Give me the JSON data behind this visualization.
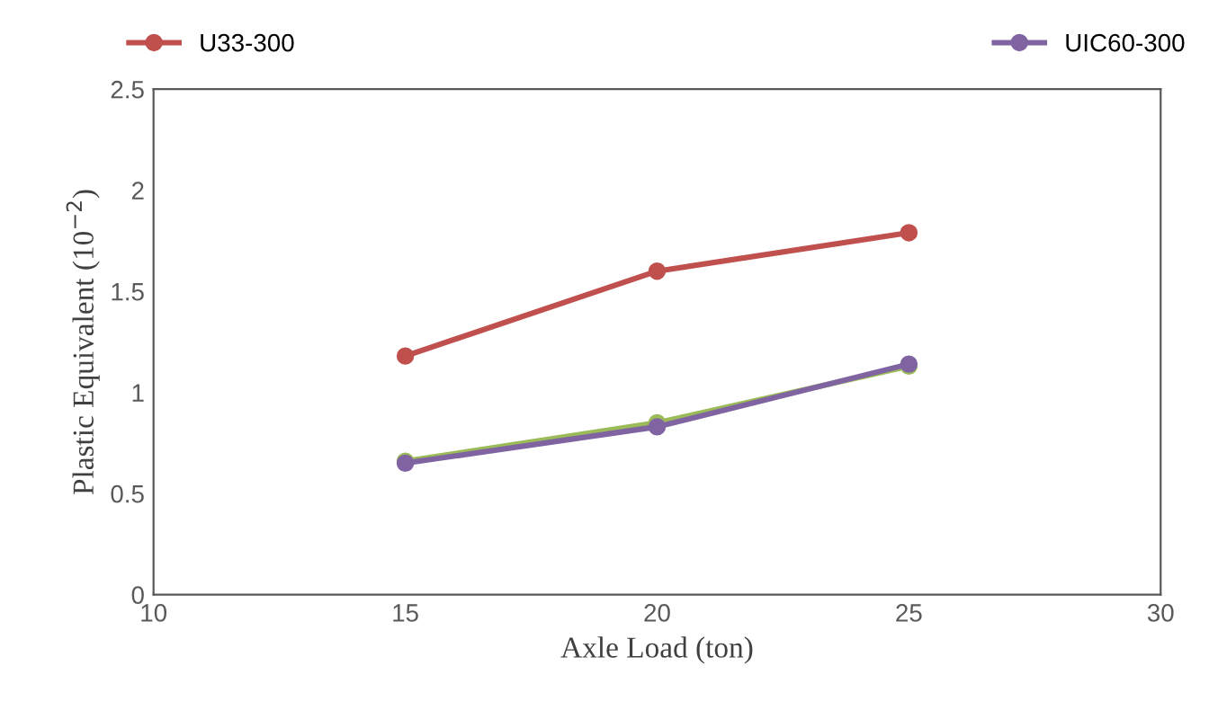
{
  "chart_data": {
    "type": "line",
    "xlabel": "Axle Load (ton)",
    "ylabel": "Plastic Equivalent (10$^{−2}$)",
    "x": [
      15,
      20,
      25
    ],
    "series": [
      {
        "name": "U33-300",
        "color": "#c0504d",
        "values": [
          1.18,
          1.6,
          1.79
        ]
      },
      {
        "color": "#9bbb59",
        "values": [
          0.66,
          0.85,
          1.13
        ]
      },
      {
        "name": "UIC60-300",
        "color": "#8064a2",
        "values": [
          0.65,
          0.83,
          1.14
        ]
      }
    ],
    "xlim": [
      10,
      30
    ],
    "xticks": [
      10,
      15,
      20,
      25,
      30
    ],
    "ylim": [
      0,
      2.5
    ],
    "yticks": [
      0,
      0.5,
      1,
      1.5,
      2,
      2.5
    ],
    "grid": false,
    "legend": "top",
    "marker": "circle",
    "line_style": "solid"
  }
}
